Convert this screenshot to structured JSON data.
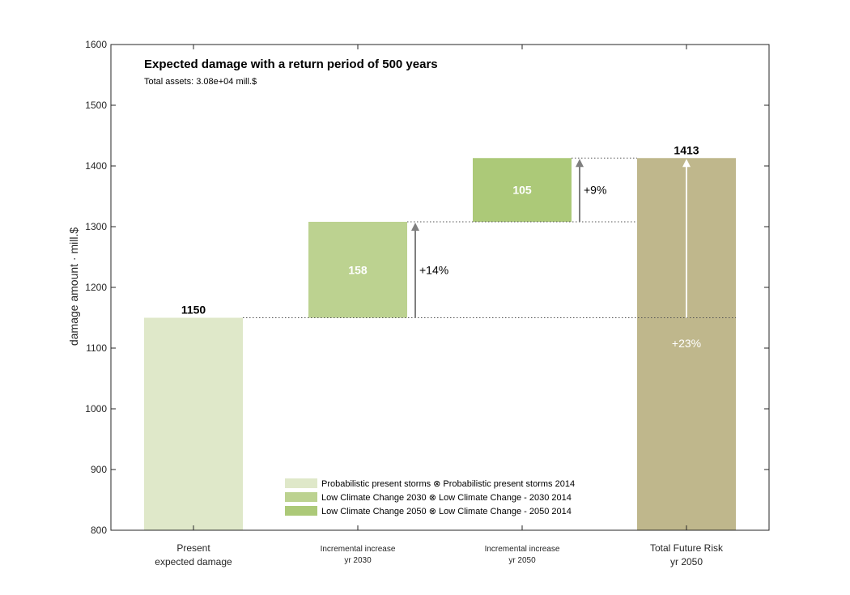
{
  "chart_data": {
    "type": "bar",
    "title": "Expected damage with a return period of 500 years",
    "subtitle": "Total assets: 3.08e+04 mill.$",
    "ylabel": "damage amount · mill.$",
    "xlabel": "",
    "ylim": [
      800,
      1600
    ],
    "yticks": [
      800,
      900,
      1000,
      1100,
      1200,
      1300,
      1400,
      1500,
      1600
    ],
    "grid": false,
    "categories": [
      {
        "line1": "Present",
        "line2": "expected damage",
        "small": false
      },
      {
        "line1": "Incremental increase",
        "line2": "yr 2030",
        "small": true
      },
      {
        "line1": "Incremental increase",
        "line2": "yr 2050",
        "small": true
      },
      {
        "line1": "Total Future Risk",
        "line2": "yr 2050",
        "small": false
      }
    ],
    "bars": [
      {
        "bottom": 800,
        "top": 1150,
        "label": "1150",
        "label_position": "above",
        "color": "#dfe8c9"
      },
      {
        "bottom": 1150,
        "top": 1308,
        "label": "158",
        "label_position": "inside",
        "color": "#bcd290"
      },
      {
        "bottom": 1308,
        "top": 1413,
        "label": "105",
        "label_position": "inside",
        "color": "#acc978"
      },
      {
        "bottom": 800,
        "top": 1413,
        "label": "1413",
        "label_position": "above",
        "color": "#bfb78c"
      }
    ],
    "increments": [
      {
        "after_bar": 1,
        "from": 1150,
        "to": 1308,
        "label": "+14%"
      },
      {
        "after_bar": 2,
        "from": 1308,
        "to": 1413,
        "label": "+9%"
      }
    ],
    "total_increment": {
      "bar": 3,
      "from": 1150,
      "to": 1413,
      "label": "+23%",
      "label_value": 1108
    },
    "legend": {
      "placement": "bottom-center",
      "entries": [
        {
          "text": "Probabilistic present storms ⊗ Probabilistic present storms 2014",
          "color": "#dfe8c9"
        },
        {
          "text": "Low Climate Change 2030 ⊗ Low Climate Change - 2030 2014",
          "color": "#bcd290"
        },
        {
          "text": "Low Climate Change 2050 ⊗ Low Climate Change - 2050 2014",
          "color": "#acc978"
        }
      ]
    },
    "colors": {
      "arrow": "#7f7f7f",
      "axis": "#262626"
    }
  }
}
